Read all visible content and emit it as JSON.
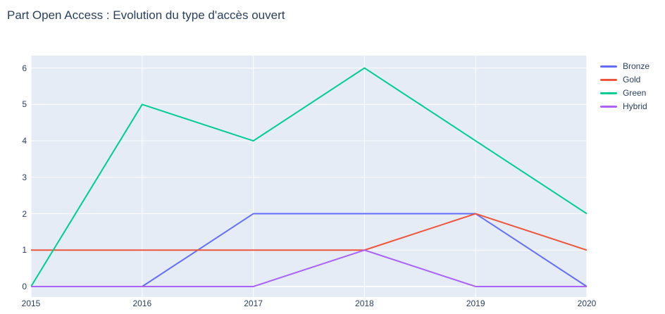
{
  "title": "Part Open Access : Evolution du type d'accès ouvert",
  "colors": {
    "title_text": "#2a3f5f",
    "tick_text": "#2a3f5f",
    "plot_background": "#e5ecf6",
    "gridline": "#ffffff",
    "page_background": "#ffffff"
  },
  "chart_data": {
    "type": "line",
    "title": "Part Open Access : Evolution du type d'accès ouvert",
    "xlabel": "",
    "ylabel": "",
    "x": [
      2015,
      2016,
      2017,
      2018,
      2019,
      2020
    ],
    "x_tick_labels": [
      "2015",
      "2016",
      "2017",
      "2018",
      "2019",
      "2020"
    ],
    "y_ticks": [
      0,
      1,
      2,
      3,
      4,
      5,
      6
    ],
    "xlim": [
      2015,
      2020
    ],
    "ylim": [
      -0.29,
      6.34
    ],
    "grid": true,
    "legend_position": "top-right-outside",
    "series": [
      {
        "name": "Bronze",
        "color": "#636efa",
        "values": [
          0,
          0,
          2,
          2,
          2,
          0
        ]
      },
      {
        "name": "Gold",
        "color": "#ef553b",
        "values": [
          1,
          1,
          1,
          1,
          2,
          1
        ]
      },
      {
        "name": "Green",
        "color": "#00cc96",
        "values": [
          0,
          5,
          4,
          6,
          4,
          2
        ]
      },
      {
        "name": "Hybrid",
        "color": "#ab63fa",
        "values": [
          0,
          0,
          0,
          1,
          0,
          0
        ]
      }
    ]
  }
}
